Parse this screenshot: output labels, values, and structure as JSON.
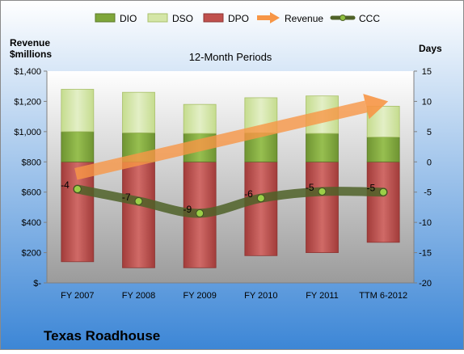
{
  "chart_data": {
    "type": "bar",
    "title": "12-Month Periods",
    "company": "Texas Roadhouse",
    "left_axis_label_line1": "Revenue",
    "left_axis_label_line2": "$millions",
    "right_axis_label": "Days",
    "categories": [
      "FY 2007",
      "FY 2008",
      "FY 2009",
      "FY 2010",
      "FY 2011",
      "TTM 6-2012"
    ],
    "left_ylim": [
      0,
      1400
    ],
    "left_ticks": [
      "$-",
      "$200",
      "$400",
      "$600",
      "$800",
      "$1,000",
      "$1,200",
      "$1,400"
    ],
    "left_tick_values": [
      0,
      200,
      400,
      600,
      800,
      1000,
      1200,
      1400
    ],
    "right_ylim": [
      -20,
      15
    ],
    "right_ticks": [
      -20,
      -15,
      -10,
      -5,
      0,
      5,
      10,
      15
    ],
    "legend": [
      {
        "name": "DIO",
        "kind": "bar",
        "color": "#7ea63a"
      },
      {
        "name": "DSO",
        "kind": "bar",
        "color": "#d4e6a7"
      },
      {
        "name": "DPO",
        "kind": "bar",
        "color": "#c0504d"
      },
      {
        "name": "Revenue",
        "kind": "arrow",
        "color": "#f79646"
      },
      {
        "name": "CCC",
        "kind": "line",
        "color": "#4f6228"
      }
    ],
    "series": [
      {
        "name": "DPO",
        "axis": "right",
        "values": [
          -16.5,
          -17.5,
          -17.5,
          -15.5,
          -15.0,
          -13.3
        ]
      },
      {
        "name": "DIO",
        "axis": "right",
        "values": [
          5.0,
          4.8,
          4.7,
          4.8,
          4.7,
          4.1
        ]
      },
      {
        "name": "DSO",
        "axis": "right",
        "values": [
          7.0,
          6.7,
          4.8,
          5.8,
          6.2,
          5.1
        ]
      },
      {
        "name": "CCC",
        "axis": "right",
        "values": [
          -4.5,
          -6.5,
          -8.5,
          -6.0,
          -4.9,
          -5.0
        ]
      },
      {
        "name": "Revenue",
        "axis": "left",
        "values": [
          720,
          810,
          875,
          940,
          1040,
          1200
        ]
      }
    ],
    "ccc_labels": [
      "-4",
      "-7",
      "-9",
      "-6",
      "-5",
      "-5"
    ],
    "legend_position": "top",
    "grid": false
  }
}
